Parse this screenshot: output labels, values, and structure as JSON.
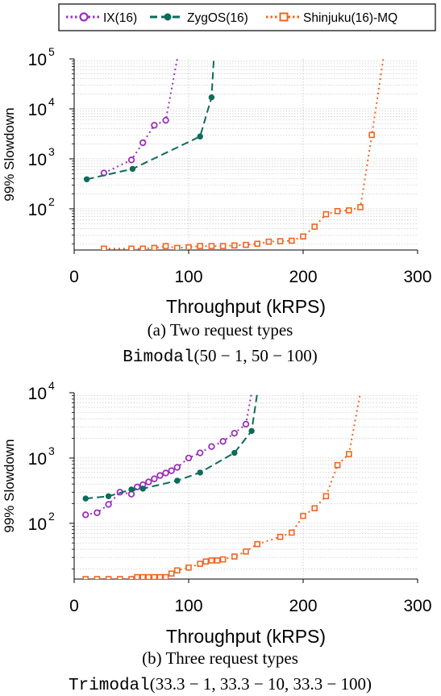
{
  "legend": {
    "items": [
      {
        "label": "IX(16)",
        "color": "#9b30b8",
        "marker": "circle",
        "dash": "dotted"
      },
      {
        "label": "ZygOS(16)",
        "color": "#0d6b5a",
        "marker": "filled-circle",
        "dash": "dashed"
      },
      {
        "label": "Shinjuku(16)-MQ",
        "color": "#f26522",
        "marker": "square",
        "dash": "dotted"
      }
    ]
  },
  "chart_data": [
    {
      "type": "line",
      "ylabel": "99% Slowdown",
      "xlabel": "Throughput (kRPS)",
      "caption": "(a) Two request types",
      "subcaption_mono": "Bimodal",
      "subcaption_math": "(50 − 1, 50 − 100)",
      "xlim": [
        0,
        300
      ],
      "ylim": [
        15,
        100000
      ],
      "yscale": "log",
      "xticks": [
        0,
        100,
        200,
        300
      ],
      "yticks": [
        {
          "value": 100,
          "base": "10",
          "exp": "2"
        },
        {
          "value": 1000,
          "base": "10",
          "exp": "3"
        },
        {
          "value": 10000,
          "base": "10",
          "exp": "4"
        },
        {
          "value": 100000,
          "base": "10",
          "exp": "5"
        }
      ],
      "grid": true,
      "series": [
        {
          "name": "IX(16)",
          "x": [
            26,
            50,
            60,
            70,
            80,
            90
          ],
          "y": [
            520,
            950,
            2100,
            4700,
            5900,
            100000
          ]
        },
        {
          "name": "ZygOS(16)",
          "x": [
            11,
            51,
            110,
            120,
            122
          ],
          "y": [
            390,
            630,
            2800,
            17000,
            100000
          ]
        },
        {
          "name": "Shinjuku(16)-MQ",
          "x": [
            26,
            50,
            60,
            70,
            80,
            90,
            100,
            110,
            120,
            130,
            140,
            150,
            160,
            170,
            180,
            190,
            200,
            210,
            220,
            230,
            240,
            250,
            260,
            270
          ],
          "y": [
            16,
            16,
            16,
            16.5,
            18,
            16.5,
            17,
            18,
            18,
            18,
            18.5,
            19,
            20,
            22,
            22.5,
            23,
            28,
            44,
            78,
            90,
            93,
            108,
            3000,
            100000
          ]
        }
      ]
    },
    {
      "type": "line",
      "ylabel": "99% Slowdown",
      "xlabel": "Throughput (kRPS)",
      "caption": "(b) Three request types",
      "subcaption_mono": "Trimodal",
      "subcaption_math": "(33.3 − 1, 33.3 − 10, 33.3 − 100)",
      "xlim": [
        0,
        300
      ],
      "ylim": [
        14,
        10000
      ],
      "yscale": "log",
      "xticks": [
        0,
        100,
        200,
        300
      ],
      "yticks": [
        {
          "value": 100,
          "base": "10",
          "exp": "2"
        },
        {
          "value": 1000,
          "base": "10",
          "exp": "3"
        },
        {
          "value": 10000,
          "base": "10",
          "exp": "4"
        }
      ],
      "grid": true,
      "series": [
        {
          "name": "IX(16)",
          "x": [
            10,
            20,
            30,
            40,
            50,
            55,
            60,
            65,
            70,
            75,
            80,
            85,
            90,
            100,
            110,
            120,
            130,
            140,
            150,
            155
          ],
          "y": [
            135,
            145,
            195,
            300,
            280,
            360,
            390,
            430,
            480,
            540,
            590,
            640,
            720,
            1000,
            1200,
            1500,
            1800,
            2400,
            3300,
            10000
          ]
        },
        {
          "name": "ZygOS(16)",
          "x": [
            10,
            30,
            50,
            60,
            90,
            110,
            140,
            155,
            160
          ],
          "y": [
            240,
            260,
            330,
            340,
            450,
            600,
            1200,
            2600,
            10000
          ]
        },
        {
          "name": "Shinjuku(16)-MQ",
          "x": [
            10,
            20,
            30,
            40,
            50,
            55,
            60,
            65,
            70,
            75,
            80,
            85,
            90,
            100,
            110,
            115,
            120,
            125,
            130,
            140,
            150,
            160,
            180,
            190,
            200,
            210,
            220,
            230,
            240,
            250
          ],
          "y": [
            14,
            14,
            14,
            14,
            14,
            15,
            15,
            15,
            15,
            15,
            15,
            17,
            19,
            21,
            24,
            26,
            27,
            27,
            28,
            31,
            37,
            48,
            62,
            72,
            130,
            170,
            260,
            780,
            1150,
            10000
          ]
        }
      ]
    }
  ]
}
